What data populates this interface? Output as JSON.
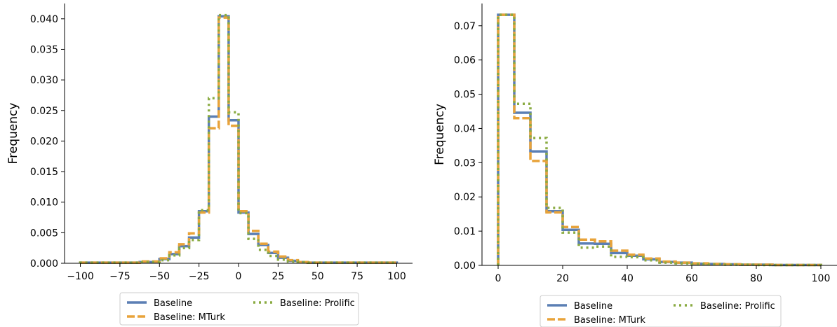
{
  "chart_data": [
    {
      "type": "histogram-step",
      "title": "",
      "xlabel": "",
      "ylabel": "Frequency",
      "xlim": [
        -110,
        110
      ],
      "ylim": [
        0,
        0.0425
      ],
      "xticks": [
        -100,
        -75,
        -50,
        -25,
        0,
        25,
        50,
        75,
        100
      ],
      "xtick_labels": [
        "−100",
        "−75",
        "−50",
        "−25",
        "0",
        "25",
        "50",
        "75",
        "100"
      ],
      "yticks": [
        0,
        0.005,
        0.01,
        0.015,
        0.02,
        0.025,
        0.03,
        0.035,
        0.04
      ],
      "ytick_labels": [
        "0.000",
        "0.005",
        "0.010",
        "0.015",
        "0.020",
        "0.025",
        "0.030",
        "0.035",
        "0.040"
      ],
      "grid": false,
      "legend": "below",
      "bin_edges": [
        -100,
        -87.5,
        -75,
        -62.5,
        -50,
        -43.75,
        -37.5,
        -31.25,
        -25,
        -18.75,
        -12.5,
        -6.25,
        0,
        6.25,
        12.5,
        18.75,
        25,
        31.25,
        37.5,
        43.75,
        50,
        62.5,
        75,
        87.5,
        100
      ],
      "series": [
        {
          "name": "Baseline",
          "color": "#5b7fb4",
          "style": "solid",
          "values": [
            0.0001,
            0.0001,
            0.0001,
            0.0002,
            0.0007,
            0.0015,
            0.0028,
            0.0042,
            0.0085,
            0.024,
            0.0404,
            0.0234,
            0.0083,
            0.0048,
            0.003,
            0.0017,
            0.0009,
            0.0004,
            0.0002,
            0.0001,
            0.0001,
            0.0001,
            0.0001,
            0.0001
          ]
        },
        {
          "name": "Baseline: MTurk",
          "color": "#e8a33a",
          "style": "dashed",
          "values": [
            0.0001,
            0.0001,
            0.0001,
            0.0003,
            0.0008,
            0.0018,
            0.0031,
            0.0049,
            0.0083,
            0.0221,
            0.0402,
            0.0225,
            0.0085,
            0.0053,
            0.0032,
            0.0019,
            0.0011,
            0.0005,
            0.0002,
            0.0001,
            0.0001,
            0.0001,
            0.0001,
            0.0001
          ]
        },
        {
          "name": "Baseline: Prolific",
          "color": "#8aab42",
          "style": "dotted",
          "values": [
            0.0001,
            0.0001,
            0.0001,
            0.0002,
            0.0005,
            0.0013,
            0.0025,
            0.0038,
            0.0087,
            0.027,
            0.0406,
            0.0247,
            0.0082,
            0.004,
            0.0022,
            0.0012,
            0.0006,
            0.0003,
            0.0002,
            0.0001,
            0.0001,
            0.0001,
            0.0001,
            0.0001
          ]
        }
      ]
    },
    {
      "type": "histogram-step",
      "title": "",
      "xlabel": "",
      "ylabel": "Frequency",
      "xlim": [
        -5,
        105
      ],
      "ylim": [
        0,
        0.0765
      ],
      "xticks": [
        0,
        20,
        40,
        60,
        80,
        100
      ],
      "xtick_labels": [
        "0",
        "20",
        "40",
        "60",
        "80",
        "100"
      ],
      "yticks": [
        0,
        0.01,
        0.02,
        0.03,
        0.04,
        0.05,
        0.06,
        0.07
      ],
      "ytick_labels": [
        "0.00",
        "0.01",
        "0.02",
        "0.03",
        "0.04",
        "0.05",
        "0.06",
        "0.07"
      ],
      "grid": false,
      "legend": "below",
      "bin_edges": [
        0,
        5,
        10,
        15,
        20,
        25,
        30,
        35,
        40,
        45,
        50,
        55,
        60,
        65,
        70,
        75,
        80,
        85,
        90,
        95,
        100
      ],
      "series": [
        {
          "name": "Baseline",
          "color": "#5b7fb4",
          "style": "solid",
          "values": [
            0.0732,
            0.0446,
            0.0333,
            0.0158,
            0.0104,
            0.0064,
            0.0063,
            0.0036,
            0.0028,
            0.0018,
            0.001,
            0.0008,
            0.0005,
            0.0004,
            0.0003,
            0.0002,
            0.0002,
            0.0001,
            0.0001,
            0.0001
          ]
        },
        {
          "name": "Baseline: MTurk",
          "color": "#e8a33a",
          "style": "dashed",
          "values": [
            0.0732,
            0.043,
            0.0305,
            0.0155,
            0.0112,
            0.0075,
            0.007,
            0.0043,
            0.0031,
            0.002,
            0.0011,
            0.0008,
            0.0006,
            0.0004,
            0.0003,
            0.0002,
            0.0002,
            0.0001,
            0.0001,
            0.0001
          ]
        },
        {
          "name": "Baseline: Prolific",
          "color": "#8aab42",
          "style": "dotted",
          "values": [
            0.0732,
            0.0472,
            0.0372,
            0.0168,
            0.0096,
            0.0052,
            0.0055,
            0.0025,
            0.0024,
            0.0015,
            0.0008,
            0.0006,
            0.0004,
            0.0003,
            0.0002,
            0.0002,
            0.0001,
            0.0001,
            0.0001,
            0.0001
          ]
        }
      ]
    }
  ]
}
